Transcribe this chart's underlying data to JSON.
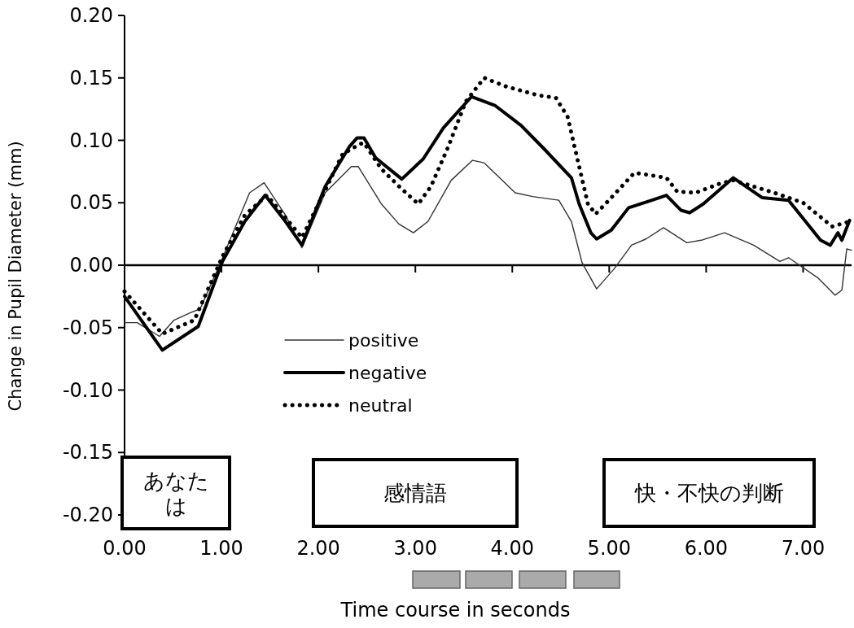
{
  "chart_data": {
    "type": "line",
    "xlabel": "Time course in seconds",
    "ylabel": "Change in Pupil Diameter (mm)",
    "xlim": [
      0,
      7.5
    ],
    "xticks": [
      {
        "value": 0,
        "label": "0.00"
      },
      {
        "value": 1,
        "label": "1.00"
      },
      {
        "value": 2,
        "label": "2.00"
      },
      {
        "value": 3,
        "label": "3.00"
      },
      {
        "value": 4,
        "label": "4.00"
      },
      {
        "value": 5,
        "label": "5.00"
      },
      {
        "value": 6,
        "label": "6.00"
      },
      {
        "value": 7,
        "label": "7.00"
      }
    ],
    "ylim": [
      -0.2,
      0.2
    ],
    "yticks": [
      {
        "value": 0.2,
        "label": "0.20"
      },
      {
        "value": 0.15,
        "label": "0.15"
      },
      {
        "value": 0.1,
        "label": "0.10"
      },
      {
        "value": 0.05,
        "label": "0.05"
      },
      {
        "value": 0,
        "label": "0.00"
      },
      {
        "value": -0.05,
        "label": "-0.05"
      },
      {
        "value": -0.1,
        "label": "-0.10"
      },
      {
        "value": -0.15,
        "label": "-0.15"
      },
      {
        "value": -0.2,
        "label": "-0.20"
      }
    ],
    "ref_lines": [
      {
        "axis": "y",
        "value": 0,
        "color": "#000000"
      }
    ],
    "legend": "bottom left",
    "annotations": [
      "あなたは",
      "感情語",
      "快・不快の判断"
    ],
    "series": [
      {
        "name": "positive",
        "color": "#333333",
        "line_style": "solid",
        "x": [
          0,
          0.13,
          0.36,
          0.51,
          0.68,
          0.78,
          0.99,
          1.29,
          1.44,
          1.66,
          1.83,
          2.07,
          2.34,
          2.41,
          2.65,
          2.83,
          2.98,
          3.13,
          3.37,
          3.59,
          3.71,
          4.03,
          4.21,
          4.48,
          4.61,
          4.72,
          4.87,
          5.05,
          5.23,
          5.38,
          5.56,
          5.8,
          5.95,
          6.19,
          6.49,
          6.76,
          6.85,
          7.15,
          7.33,
          7.4,
          7.45,
          7.5
        ],
        "values": [
          -0.046,
          -0.046,
          -0.057,
          -0.044,
          -0.038,
          -0.035,
          0.002,
          0.058,
          0.066,
          0.04,
          0.014,
          0.058,
          0.079,
          0.079,
          0.049,
          0.033,
          0.026,
          0.035,
          0.068,
          0.084,
          0.082,
          0.058,
          0.055,
          0.052,
          0.035,
          0.002,
          -0.019,
          -0.003,
          0.016,
          0.021,
          0.03,
          0.018,
          0.02,
          0.026,
          0.016,
          0.003,
          0.006,
          -0.01,
          -0.024,
          -0.02,
          0.013,
          0.012
        ]
      },
      {
        "name": "negative",
        "color": "#000000",
        "line_style": "solid",
        "x": [
          0,
          0.39,
          0.76,
          1.01,
          1.24,
          1.45,
          1.66,
          1.83,
          2.07,
          2.32,
          2.4,
          2.47,
          2.59,
          2.86,
          3.08,
          3.29,
          3.58,
          3.82,
          4.09,
          4.33,
          4.61,
          4.69,
          4.81,
          4.87,
          5.02,
          5.2,
          5.44,
          5.59,
          5.74,
          5.83,
          5.97,
          6.28,
          6.58,
          6.85,
          7.18,
          7.28,
          7.36,
          7.4,
          7.48
        ],
        "values": [
          -0.025,
          -0.068,
          -0.049,
          0.003,
          0.035,
          0.056,
          0.035,
          0.016,
          0.063,
          0.095,
          0.102,
          0.102,
          0.086,
          0.069,
          0.085,
          0.11,
          0.135,
          0.128,
          0.112,
          0.093,
          0.07,
          0.049,
          0.026,
          0.021,
          0.028,
          0.046,
          0.052,
          0.056,
          0.044,
          0.042,
          0.049,
          0.07,
          0.054,
          0.052,
          0.02,
          0.016,
          0.026,
          0.02,
          0.036
        ]
      },
      {
        "name": "neutral",
        "color": "#000000",
        "line_style": "dotted",
        "x": [
          0,
          0.39,
          0.72,
          1.01,
          1.24,
          1.47,
          1.83,
          2.25,
          2.43,
          2.47,
          2.65,
          2.86,
          3.03,
          3.16,
          3.34,
          3.52,
          3.71,
          3.94,
          4.27,
          4.45,
          4.57,
          4.69,
          4.78,
          4.86,
          4.96,
          5.26,
          5.59,
          5.7,
          5.89,
          6.13,
          6.28,
          6.7,
          7.0,
          7.3,
          7.48
        ],
        "values": [
          -0.021,
          -0.055,
          -0.044,
          0.007,
          0.04,
          0.056,
          0.022,
          0.089,
          0.097,
          0.098,
          0.077,
          0.061,
          0.049,
          0.063,
          0.095,
          0.131,
          0.15,
          0.143,
          0.136,
          0.134,
          0.119,
          0.079,
          0.049,
          0.041,
          0.049,
          0.074,
          0.07,
          0.059,
          0.058,
          0.065,
          0.068,
          0.058,
          0.05,
          0.031,
          0.035
        ]
      }
    ]
  }
}
